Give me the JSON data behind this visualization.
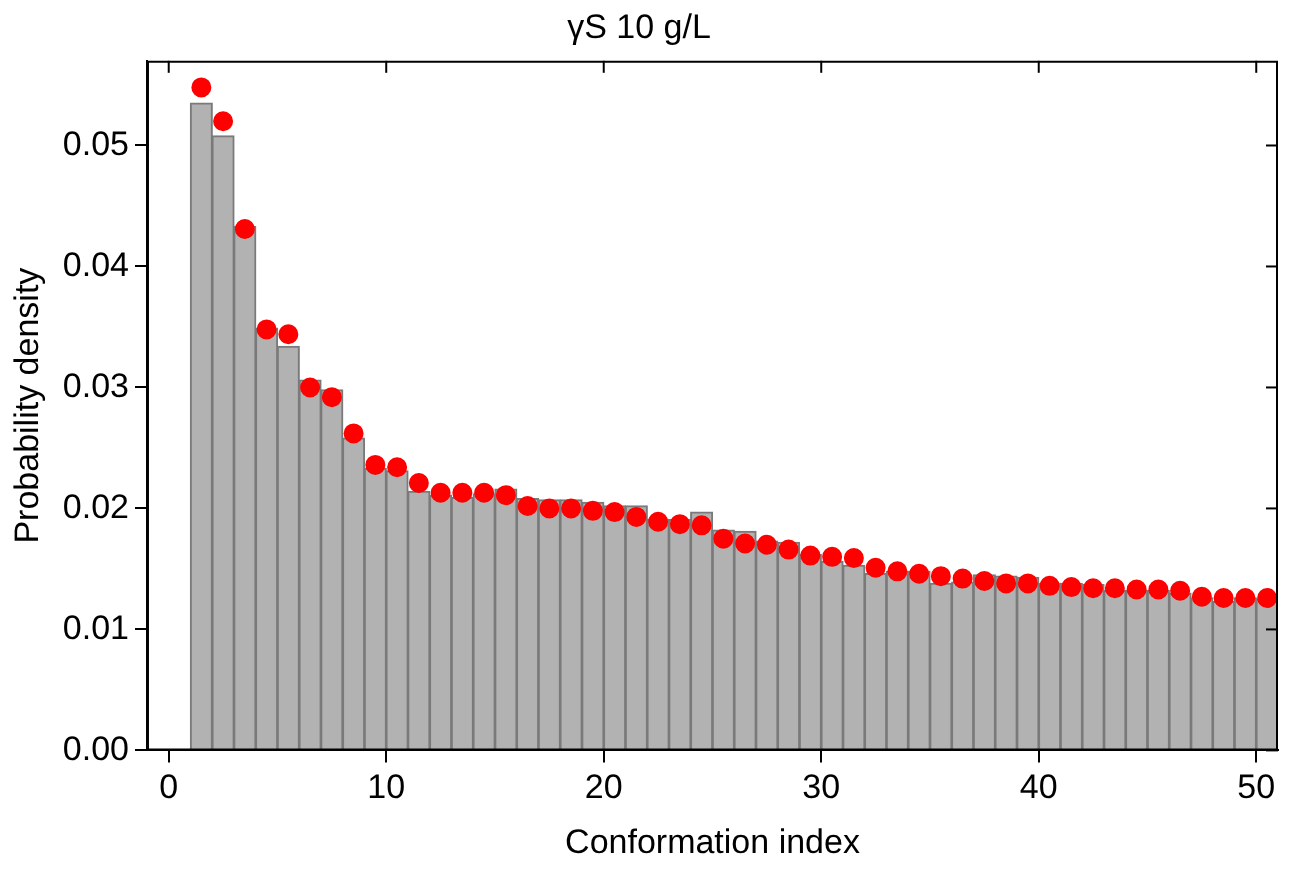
{
  "chart_data": {
    "type": "histogram",
    "title": "γS 10 g/L",
    "xlabel": "Conformation index",
    "ylabel": "Probability density",
    "xlim": [
      -1,
      51
    ],
    "ylim": [
      0,
      0.057
    ],
    "xticks": [
      0,
      10,
      20,
      30,
      40,
      50
    ],
    "yticks": [
      {
        "value": 0,
        "label": "0.00"
      },
      {
        "value": 0.01,
        "label": "0.01"
      },
      {
        "value": 0.02,
        "label": "0.02"
      },
      {
        "value": 0.03,
        "label": "0.03"
      },
      {
        "value": 0.04,
        "label": "0.04"
      },
      {
        "value": 0.05,
        "label": "0.05"
      }
    ],
    "grid": false,
    "legend": false,
    "series": [
      {
        "type": "histogram",
        "color": "#b2b2b2",
        "bins": [
          1,
          2,
          3,
          4,
          5,
          6,
          7,
          8,
          9,
          10,
          11,
          12,
          13,
          14,
          15,
          16,
          17,
          18,
          19,
          20,
          21,
          22,
          23,
          24,
          25,
          26,
          27,
          28,
          29,
          30,
          31,
          32,
          33,
          34,
          35,
          36,
          37,
          38,
          39,
          40,
          41,
          42,
          43,
          44,
          45,
          46,
          47,
          48,
          49,
          50,
          51
        ],
        "values": [
          0.0535,
          0.0508,
          0.0433,
          0.0349,
          0.0334,
          0.0306,
          0.0298,
          0.0258,
          0.0233,
          0.0231,
          0.0214,
          0.0211,
          0.0209,
          0.0212,
          0.0216,
          0.0208,
          0.0207,
          0.0207,
          0.0205,
          0.0202,
          0.0202,
          0.0191,
          0.0191,
          0.0197,
          0.0182,
          0.0181,
          0.0173,
          0.0172,
          0.0162,
          0.0156,
          0.0153,
          0.0146,
          0.0148,
          0.0148,
          0.0138,
          0.0139,
          0.0145,
          0.0144,
          0.0143,
          0.0138,
          0.0138,
          0.0137,
          0.0132,
          0.0132,
          0.0132,
          0.013,
          0.0126,
          0.0123,
          0.0126,
          0.0125
        ]
      },
      {
        "type": "scatter",
        "color": "#ff0000",
        "marker": "circle",
        "x": [
          1.5,
          2.5,
          3.5,
          4.5,
          5.5,
          6.5,
          7.5,
          8.5,
          9.5,
          10.5,
          11.5,
          12.5,
          13.5,
          14.5,
          15.5,
          16.5,
          17.5,
          18.5,
          19.5,
          20.5,
          21.5,
          22.5,
          23.5,
          24.5,
          25.5,
          26.5,
          27.5,
          28.5,
          29.5,
          30.5,
          31.5,
          32.5,
          33.5,
          34.5,
          35.5,
          36.5,
          37.5,
          38.5,
          39.5,
          40.5,
          41.5,
          42.5,
          43.5,
          44.5,
          45.5,
          46.5,
          47.5,
          48.5,
          49.5,
          50.5
        ],
        "values": [
          0.0548,
          0.052,
          0.0431,
          0.0348,
          0.0344,
          0.03,
          0.0292,
          0.0262,
          0.0236,
          0.0234,
          0.0221,
          0.0213,
          0.0213,
          0.0213,
          0.0211,
          0.0202,
          0.02,
          0.02,
          0.0198,
          0.0197,
          0.0193,
          0.0189,
          0.0187,
          0.0186,
          0.0175,
          0.0171,
          0.017,
          0.0166,
          0.0161,
          0.016,
          0.0159,
          0.0151,
          0.0148,
          0.0146,
          0.0144,
          0.0142,
          0.014,
          0.0138,
          0.0138,
          0.0136,
          0.0135,
          0.0134,
          0.0134,
          0.0133,
          0.0133,
          0.0132,
          0.0127,
          0.0126,
          0.0126,
          0.0126
        ]
      }
    ]
  }
}
